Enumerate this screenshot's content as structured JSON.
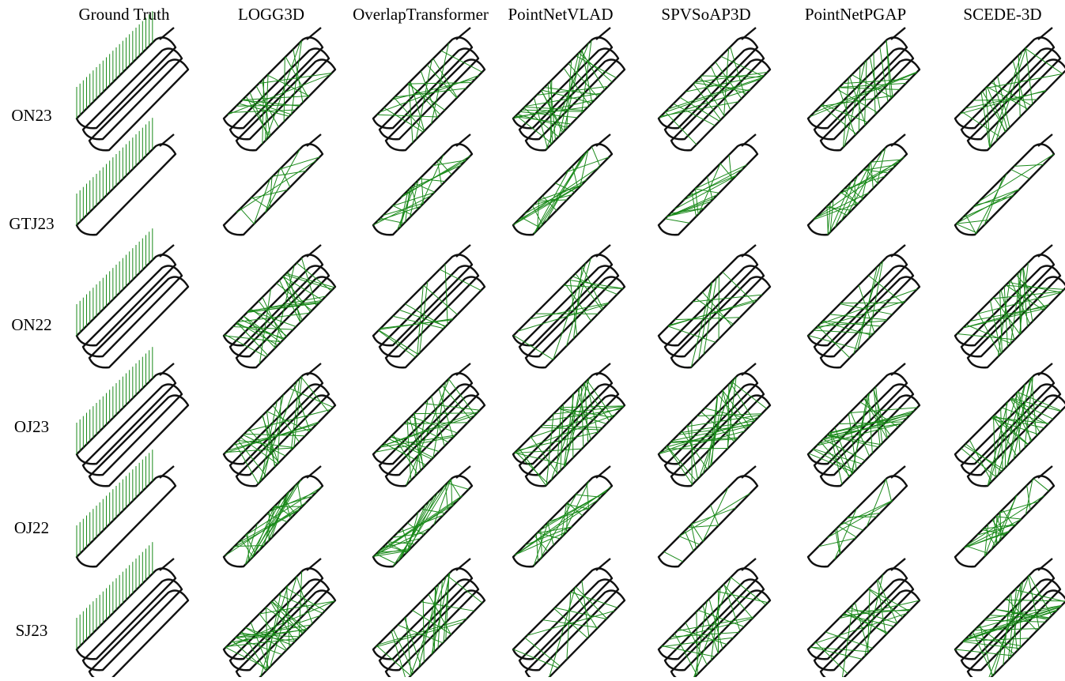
{
  "columns": [
    "Ground Truth",
    "LOGG3D",
    "OverlapTransformer",
    "PointNetVLAD",
    "SPVSoAP3D",
    "PointNetPGAP",
    "SCEDE-3D"
  ],
  "rows": [
    "ON23",
    "GTJ23",
    "ON22",
    "OJ23",
    "OJ22",
    "SJ23"
  ]
}
